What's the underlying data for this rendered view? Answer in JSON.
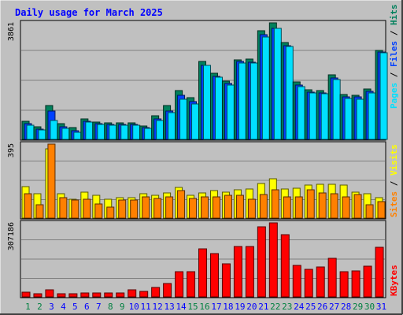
{
  "chart_data": {
    "type": "bar",
    "title": "Daily usage for March 2025",
    "categories": [
      "1",
      "2",
      "3",
      "4",
      "5",
      "6",
      "7",
      "8",
      "9",
      "10",
      "11",
      "12",
      "13",
      "14",
      "15",
      "16",
      "17",
      "18",
      "19",
      "20",
      "21",
      "22",
      "23",
      "24",
      "25",
      "26",
      "27",
      "28",
      "29",
      "30",
      "31"
    ],
    "weekend_days": [
      "1",
      "2",
      "8",
      "9",
      "15",
      "16",
      "22",
      "23",
      "29",
      "30"
    ],
    "panels": [
      {
        "id": "top",
        "ymax_label": "3861",
        "ymax": 3861,
        "series": [
          {
            "name": "Hits",
            "color": "#00805c",
            "values": [
              610,
              420,
              1110,
              520,
              390,
              670,
              570,
              540,
              540,
              540,
              450,
              790,
              1120,
              1630,
              1370,
              2570,
              2180,
              1930,
              2640,
              2660,
              3600,
              3850,
              3210,
              1900,
              1640,
              1630,
              2150,
              1480,
              1470,
              1660,
              2960
            ]
          },
          {
            "name": "Files",
            "color": "#0040ff",
            "values": [
              530,
              350,
              930,
              410,
              290,
              600,
              520,
              490,
              490,
              490,
              390,
              690,
              950,
              1450,
              1260,
              2460,
              2090,
              1840,
              2570,
              2560,
              3460,
              3690,
              3110,
              1810,
              1570,
              1550,
              2040,
              1400,
              1400,
              1580,
              2900
            ]
          },
          {
            "name": "Pages",
            "color": "#00e0ff",
            "values": [
              480,
              310,
              620,
              370,
              240,
              570,
              490,
              460,
              460,
              460,
              370,
              620,
              880,
              1340,
              1170,
              2440,
              2050,
              1800,
              2540,
              2520,
              3400,
              3670,
              3080,
              1760,
              1530,
              1520,
              1970,
              1350,
              1330,
              1530,
              2880
            ]
          }
        ]
      },
      {
        "id": "mid",
        "ymax_label": "395",
        "ymax": 395,
        "series": [
          {
            "name": "Visits",
            "color": "#ffff00",
            "values": [
              170,
              130,
              370,
              130,
              100,
              140,
              120,
              100,
              110,
              110,
              130,
              120,
              135,
              165,
              120,
              135,
              145,
              140,
              150,
              155,
              185,
              210,
              155,
              160,
              175,
              180,
              180,
              175,
              140,
              130,
              110
            ]
          },
          {
            "name": "Sites",
            "color": "#ff8000",
            "values": [
              130,
              70,
              395,
              110,
              95,
              100,
              75,
              60,
              95,
              95,
              115,
              105,
              115,
              145,
              105,
              115,
              115,
              120,
              120,
              100,
              125,
              150,
              115,
              115,
              150,
              135,
              130,
              115,
              125,
              70,
              90
            ]
          }
        ]
      },
      {
        "id": "bot",
        "ymax_label": "307186",
        "ymax": 307186,
        "series": [
          {
            "name": "KBytes",
            "color": "#ff0000",
            "values": [
              19000,
              14000,
              30000,
              14000,
              12000,
              16000,
              16000,
              16000,
              16000,
              29000,
              22000,
              40000,
              57000,
              106000,
              106000,
              198000,
              179000,
              136000,
              210000,
              208000,
              290000,
              307000,
              259000,
              131000,
              116000,
              125000,
              161000,
              106000,
              108000,
              128000,
              206000
            ]
          }
        ]
      }
    ],
    "legend": {
      "top": [
        "Pages",
        "Files",
        "Hits"
      ],
      "mid": [
        "Sites",
        "Visits"
      ],
      "bot": [
        "KBytes"
      ]
    },
    "colors": {
      "background": "#c0c0c0",
      "plot": "#c0c0c0",
      "title": "#0000ff",
      "weekday_label": "#0000ff",
      "weekend_label": "#008040",
      "gridline": "#808080"
    }
  }
}
